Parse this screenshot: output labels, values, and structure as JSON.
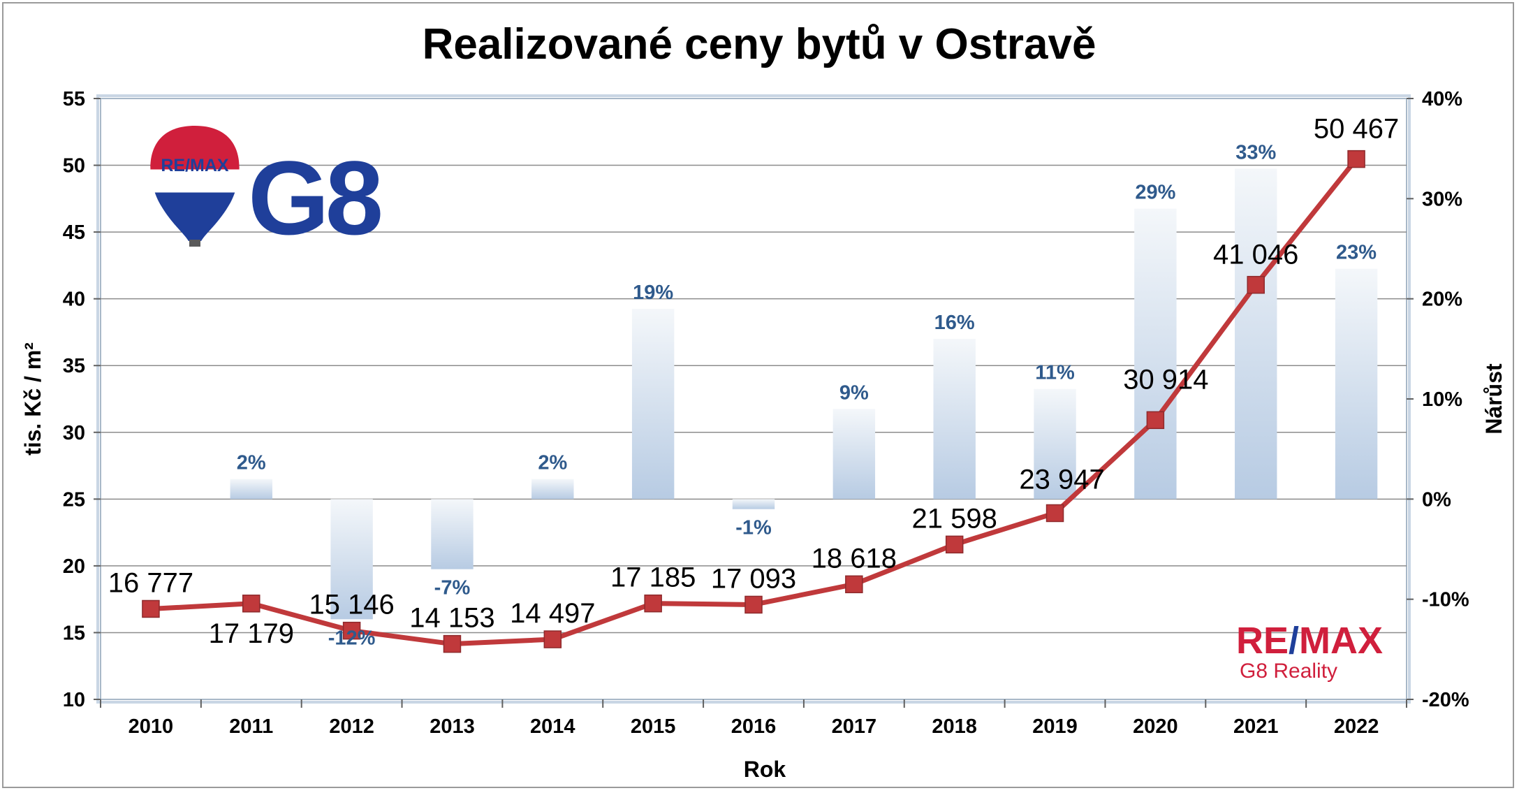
{
  "chart_data": {
    "type": "bar+line",
    "title": "Realizované ceny bytů v Ostravě",
    "xlabel": "Rok",
    "ylabel": "tis. Kč / m²",
    "y2label": "Nárůst",
    "categories": [
      "2010",
      "2011",
      "2012",
      "2013",
      "2014",
      "2015",
      "2016",
      "2017",
      "2018",
      "2019",
      "2020",
      "2021",
      "2022"
    ],
    "ylim": [
      10,
      55
    ],
    "yticks": [
      10,
      15,
      20,
      25,
      30,
      35,
      40,
      45,
      50,
      55
    ],
    "y2lim": [
      -20,
      40
    ],
    "y2ticks": [
      -20,
      -10,
      0,
      10,
      20,
      30,
      40
    ],
    "y2tick_labels": [
      "-20%",
      "-10%",
      "0%",
      "10%",
      "20%",
      "30%",
      "40%"
    ],
    "grid": true,
    "series": [
      {
        "type": "line",
        "axis": "left",
        "values": [
          16777,
          17179,
          15146,
          14153,
          14497,
          17185,
          17093,
          18618,
          21598,
          23947,
          30914,
          41046,
          50467
        ],
        "labels": [
          "16 777",
          "17 179",
          "15 146",
          "14 153",
          "14 497",
          "17 185",
          "17 093",
          "18 618",
          "21 598",
          "23 947",
          "30 914",
          "41 046",
          "50 467"
        ],
        "color": "#c0393b"
      },
      {
        "type": "bar",
        "axis": "right",
        "values": [
          null,
          2,
          -12,
          -7,
          2,
          19,
          -1,
          9,
          16,
          11,
          29,
          33,
          23
        ],
        "labels": [
          "",
          "2%",
          "-12%",
          "-7%",
          "2%",
          "19%",
          "-1%",
          "9%",
          "16%",
          "11%",
          "29%",
          "33%",
          "23%"
        ],
        "color": "#b8cde4"
      }
    ]
  },
  "logos": {
    "balloon_text": "RE/MAX",
    "brand_big": "G8",
    "brand_corner_re": "RE",
    "brand_corner_slash": "/",
    "brand_corner_max": "MAX",
    "brand_corner_sub": "G8 Reality",
    "colors": {
      "blue": "#1f3f9a",
      "red": "#d01f3c",
      "line": "#c0393b"
    }
  }
}
